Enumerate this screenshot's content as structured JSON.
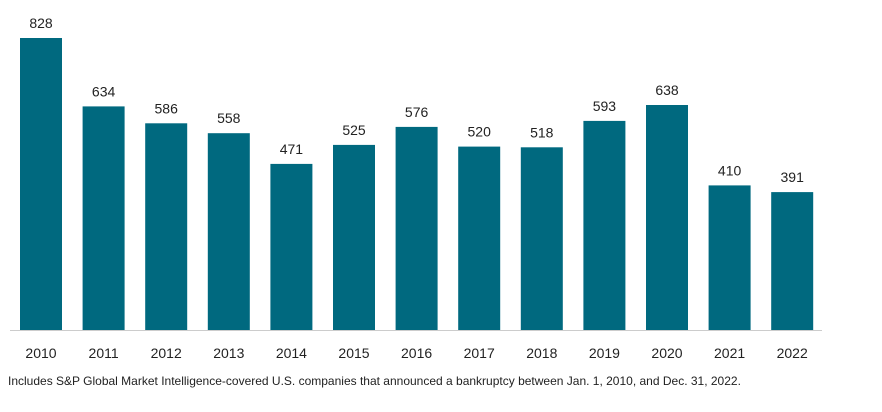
{
  "chart_data": {
    "type": "bar",
    "categories": [
      "2010",
      "2011",
      "2012",
      "2013",
      "2014",
      "2015",
      "2016",
      "2017",
      "2018",
      "2019",
      "2020",
      "2021",
      "2022"
    ],
    "values": [
      828,
      634,
      586,
      558,
      471,
      525,
      576,
      520,
      518,
      593,
      638,
      410,
      391
    ],
    "title": "",
    "xlabel": "",
    "ylabel": "",
    "ylim": [
      0,
      828
    ],
    "grid": false,
    "legend": "none",
    "bar_color": "#00697f",
    "axis_color": "#cccccc",
    "data_labels": true
  },
  "footnote": "Includes S&P Global Market Intelligence-covered U.S. companies that announced a bankruptcy between Jan. 1, 2010, and Dec. 31, 2022."
}
